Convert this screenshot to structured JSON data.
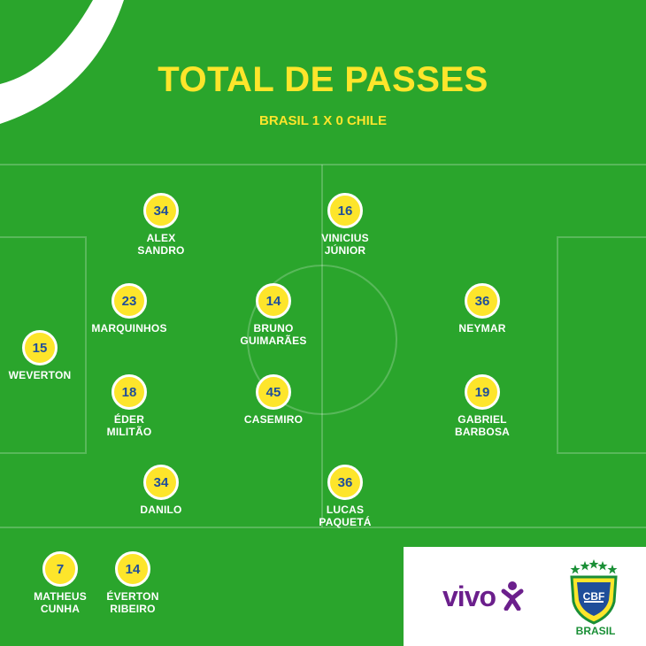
{
  "header": {
    "title": "TOTAL DE PASSES",
    "subtitle": "BRASIL 1 X 0 CHILE"
  },
  "colors": {
    "field": "#2aa52c",
    "accent": "#fde52b",
    "number": "#1f4e9a",
    "vivo": "#6b1f8c",
    "cbf_green": "#1a8f36"
  },
  "players": [
    {
      "number": "15",
      "line1": "WEVERTON",
      "line2": ""
    },
    {
      "number": "34",
      "line1": "ALEX",
      "line2": "SANDRO"
    },
    {
      "number": "23",
      "line1": "MARQUINHOS",
      "line2": ""
    },
    {
      "number": "18",
      "line1": "ÉDER",
      "line2": "MILITÃO"
    },
    {
      "number": "34",
      "line1": "DANILO",
      "line2": ""
    },
    {
      "number": "14",
      "line1": "BRUNO",
      "line2": "GUIMARÃES"
    },
    {
      "number": "45",
      "line1": "CASEMIRO",
      "line2": ""
    },
    {
      "number": "16",
      "line1": "VINICIUS",
      "line2": "JÚNIOR"
    },
    {
      "number": "36",
      "line1": "LUCAS",
      "line2": "PAQUETÁ"
    },
    {
      "number": "36",
      "line1": "NEYMAR",
      "line2": ""
    },
    {
      "number": "19",
      "line1": "GABRIEL",
      "line2": "BARBOSA"
    },
    {
      "number": "7",
      "line1": "MATHEUS",
      "line2": "CUNHA"
    },
    {
      "number": "14",
      "line1": "ÉVERTON",
      "line2": "RIBEIRO"
    }
  ],
  "sponsor": {
    "brand": "vivo",
    "logo_icon": "vivo-figure-icon"
  },
  "federation": {
    "crest_text": "CBF",
    "label": "BRASIL",
    "crest_icon": "cbf-crest-icon"
  }
}
